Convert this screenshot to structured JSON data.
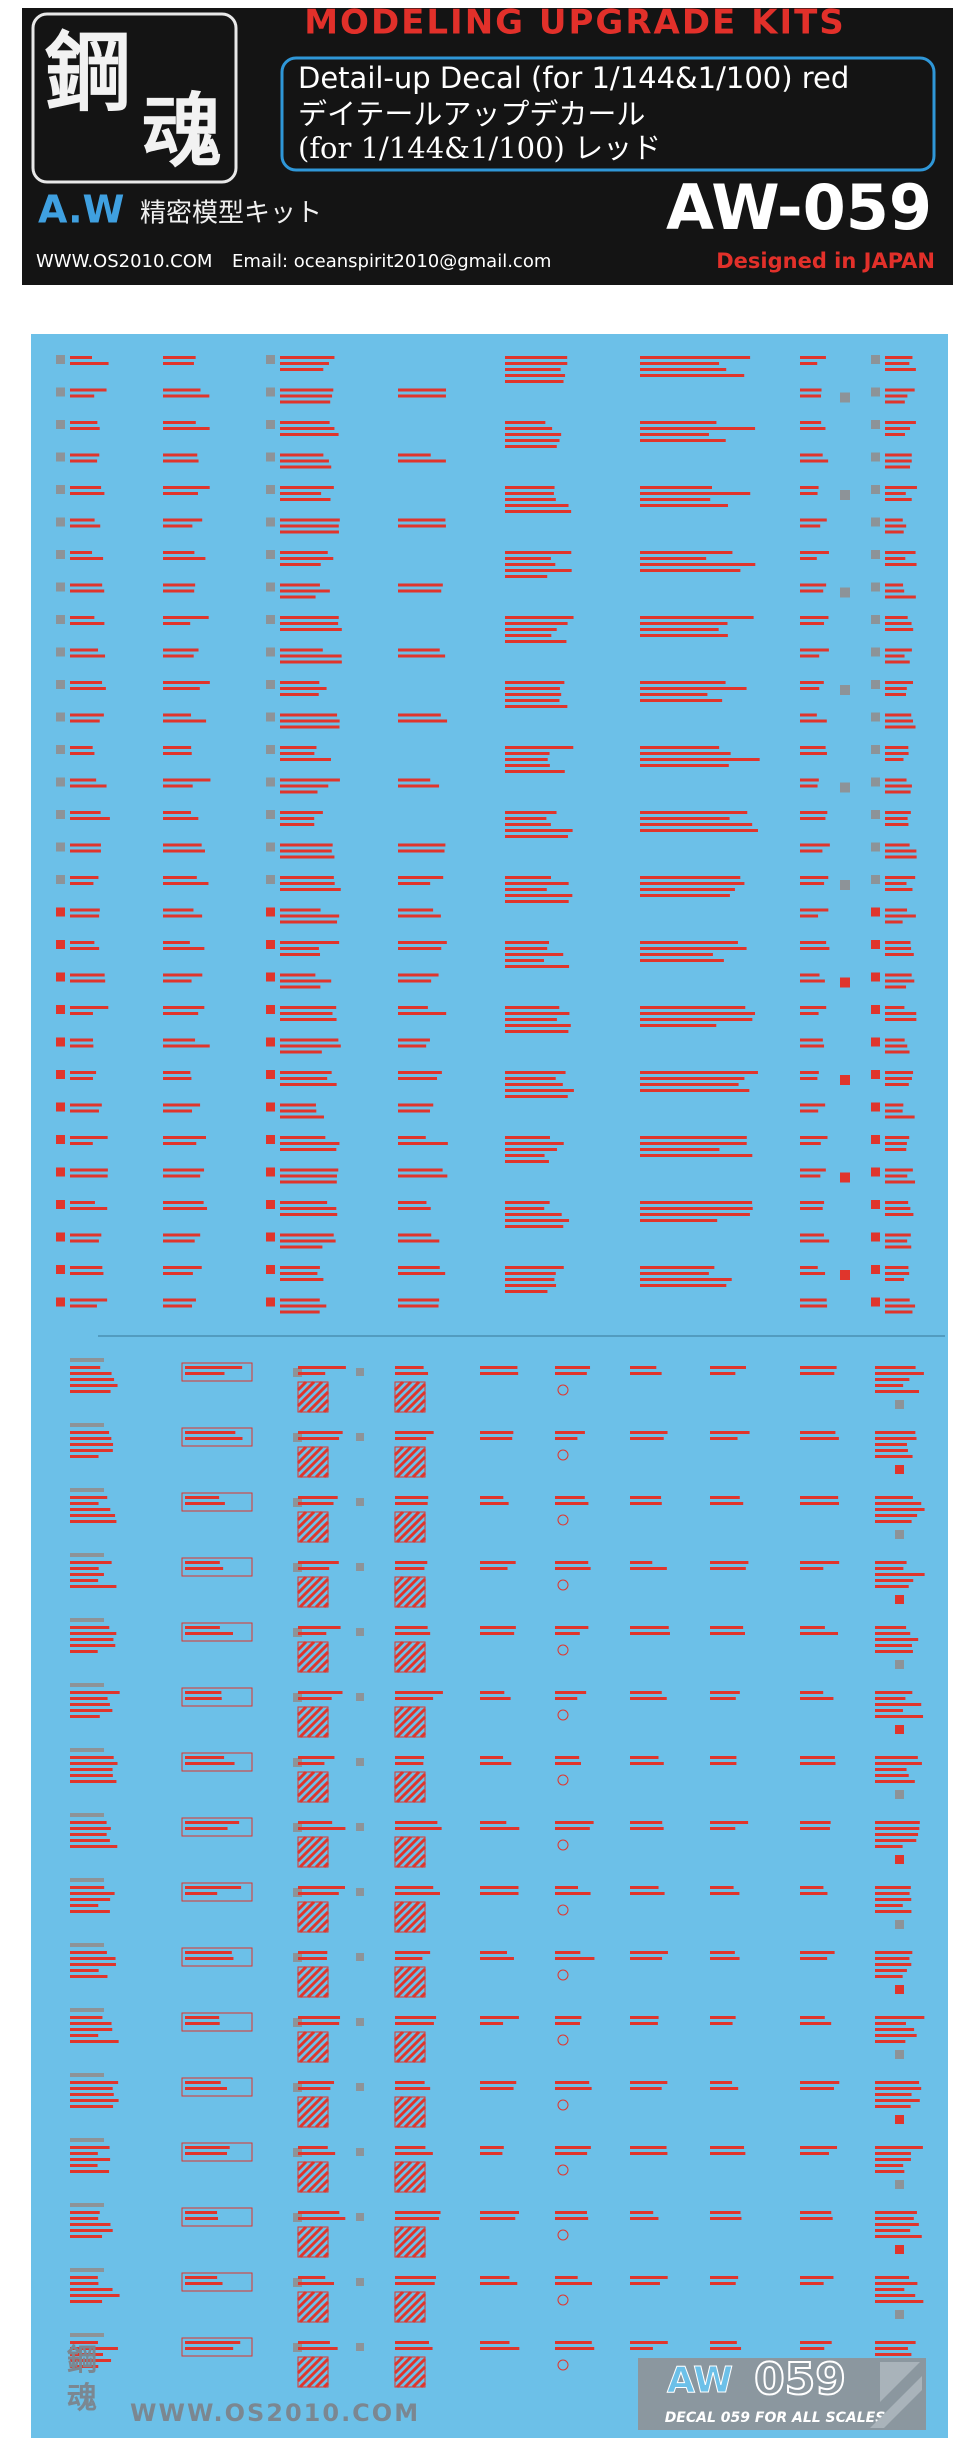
{
  "header": {
    "logo": [
      "鋼",
      "魂"
    ],
    "brand": "A.W",
    "brand_jp": "精密模型キット",
    "title": "MODELING UPGRADE KITS",
    "product_en": "Detail-up Decal (for 1/144&1/100) red",
    "product_jp": "デイテールアップデカール",
    "product_jp2": "(for 1/144&1/100) レッド",
    "code": "AW-059",
    "website": "WWW.OS2010.COM",
    "email": "Email: oceanspirit2010@gmail.com",
    "origin": "Designed in JAPAN"
  },
  "footer": {
    "logo": [
      "鋼",
      "魂"
    ],
    "website": "WWW.OS2010.COM",
    "badge_prefix": "AW",
    "badge_number": "059",
    "badge_sub": "DECAL 059 FOR ALL SCALES"
  }
}
